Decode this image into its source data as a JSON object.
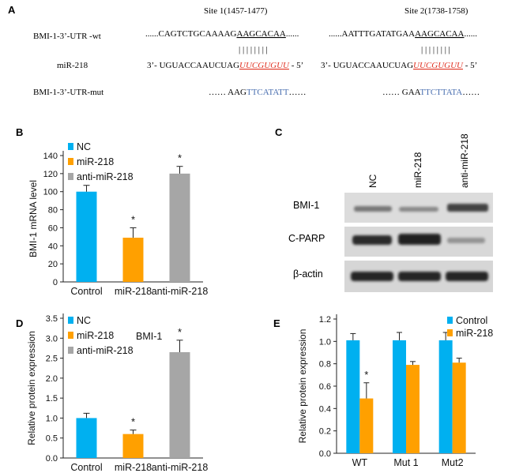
{
  "colors": {
    "nc_blue": "#00b0f0",
    "mir_orange": "#ffa000",
    "anti_gray": "#a6a6a6",
    "seq_red": "#e03020",
    "seq_blue": "#4a6fb0",
    "axis": "#222222"
  },
  "panel_a": {
    "letter": "A",
    "site1_label": "Site 1(1457-1477)",
    "site2_label": "Site 2(1738-1758)",
    "row_wt_label": "BMI-1-3’-UTR -wt",
    "row_mir_label": "miR-218",
    "row_mut_label": "BMI-1-3’-UTR-mut",
    "site1": {
      "wt_prefix": "......CAGTCTGCAAAAG",
      "wt_seed": "AAGCACAA",
      "wt_suffix": "......",
      "bars": "| | | | | | | |",
      "mir_prefix": "3’- UGUACCAAUCUAG",
      "mir_seed": "UUCGUGUU",
      "mir_suffix": " - 5’",
      "mut_prefix": "…… AAG",
      "mut_seed": "TTCATATT",
      "mut_suffix": "……"
    },
    "site2": {
      "wt_prefix": "......AATTTGATATGAA",
      "wt_seed": "AAGCACAA",
      "wt_suffix": "......",
      "bars": "| | | | | | | |",
      "mir_prefix": "3’- UGUACCAAUCUAG",
      "mir_seed": "UUCGUGUU",
      "mir_suffix": " - 5’",
      "mut_prefix": "…… GAA",
      "mut_seed": "TTCTTATA",
      "mut_suffix": "……"
    }
  },
  "panel_c": {
    "letter": "C",
    "lanes": [
      "NC",
      "miR-218",
      "anti-miR-218"
    ],
    "rows": [
      "BMI-1",
      "C-PARP",
      "β-actin"
    ]
  },
  "chart_data": [
    {
      "panel": "B",
      "type": "bar",
      "categories": [
        "Control",
        "miR-218",
        "anti-miR-218"
      ],
      "values": [
        100,
        49,
        120
      ],
      "errors": [
        7,
        11,
        8
      ],
      "significance": [
        "",
        "*",
        "*"
      ],
      "legend": [
        "NC",
        "miR-218",
        "anti-miR-218"
      ],
      "ylabel": "BMI-1 mRNA level",
      "ylim": [
        0,
        140
      ],
      "yticks": [
        0,
        20,
        40,
        60,
        80,
        100,
        120,
        140
      ],
      "ytick_labels": [
        "0",
        "20",
        "40",
        "60",
        "80",
        "100",
        "120",
        "140"
      ],
      "legend_position": "top-left",
      "grid": false
    },
    {
      "panel": "D",
      "type": "bar",
      "title": "BMI-1",
      "categories": [
        "Control",
        "miR-218",
        "anti-miR-218"
      ],
      "values": [
        1.0,
        0.6,
        2.65
      ],
      "errors": [
        0.12,
        0.1,
        0.3
      ],
      "significance": [
        "",
        "*",
        "*"
      ],
      "legend": [
        "NC",
        "miR-218",
        "anti-miR-218"
      ],
      "ylabel": "Relative protein expression",
      "ylim": [
        0,
        3.5
      ],
      "yticks": [
        0,
        0.5,
        1.0,
        1.5,
        2.0,
        2.5,
        3.0,
        3.5
      ],
      "ytick_labels": [
        "0.0",
        "0.5",
        "1.0",
        "1.5",
        "2.0",
        "2.5",
        "3.0",
        "3.5"
      ],
      "legend_position": "top-left",
      "grid": false
    },
    {
      "panel": "E",
      "type": "bar",
      "categories": [
        "WT",
        "Mut 1",
        "Mut2"
      ],
      "series": [
        {
          "name": "Control",
          "values": [
            1.01,
            1.01,
            1.01
          ],
          "errors": [
            0.06,
            0.07,
            0.07
          ]
        },
        {
          "name": "miR-218",
          "values": [
            0.49,
            0.79,
            0.81
          ],
          "errors": [
            0.14,
            0.03,
            0.04
          ]
        }
      ],
      "significance": [
        "*",
        "",
        ""
      ],
      "ylabel": "Relative protein expression",
      "ylim": [
        0,
        1.2
      ],
      "yticks": [
        0,
        0.2,
        0.4,
        0.6,
        0.8,
        1.0,
        1.2
      ],
      "ytick_labels": [
        "0.0",
        "0.2",
        "0.4",
        "0.6",
        "0.8",
        "1.0",
        "1.2"
      ],
      "legend_position": "top-right",
      "grid": false
    }
  ]
}
